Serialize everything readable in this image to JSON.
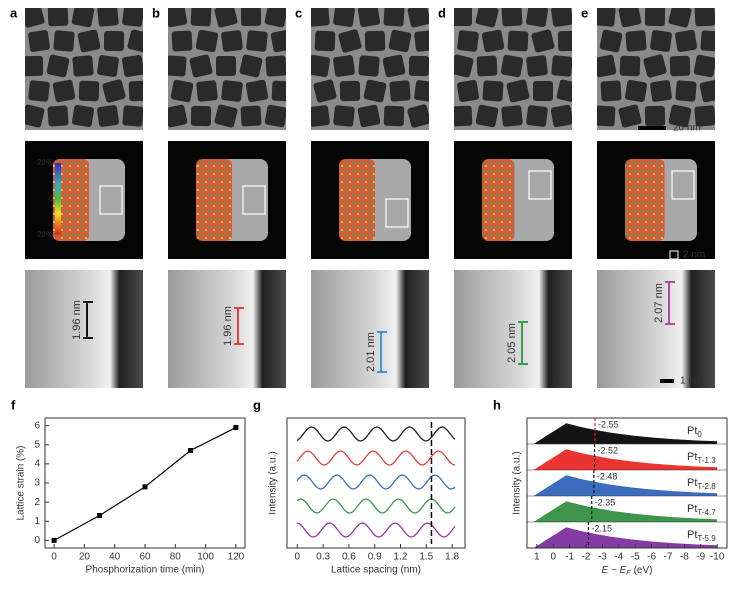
{
  "figure": {
    "panel_labels": [
      "a",
      "b",
      "c",
      "d",
      "e",
      "f",
      "g",
      "h"
    ],
    "scale_bars": {
      "overview": "20 nm",
      "particle": "2 nm",
      "lattice": "1 nm"
    },
    "strain_colorbar": [
      "-20%",
      "0",
      "20%"
    ],
    "lattice_spacings": [
      "1.96 nm",
      "1.96 nm",
      "2.01 nm",
      "2.05 nm",
      "2.07 nm"
    ]
  },
  "chart_data": [
    {
      "type": "line",
      "xlabel": "Phosphorization time (min)",
      "ylabel": "Lattice strain (%)",
      "x": [
        0,
        30,
        60,
        90,
        120
      ],
      "values": [
        0,
        1.3,
        2.8,
        4.7,
        5.9
      ],
      "color": "#000000",
      "xlim": [
        -6,
        126
      ],
      "ylim": [
        -0.4,
        6.4
      ],
      "xticks": [
        0,
        20,
        40,
        60,
        80,
        100,
        120
      ],
      "yticks": [
        0,
        1,
        2,
        3,
        4,
        5,
        6
      ]
    },
    {
      "type": "profile",
      "xlabel": "Lattice spacing (nm)",
      "ylabel": "Intensity (a.u.)",
      "xlim": [
        -0.12,
        1.95
      ],
      "xticks": [
        0,
        0.3,
        0.6,
        0.9,
        1.2,
        1.5,
        1.8
      ],
      "marker_line": 1.56,
      "colors": [
        "#222222",
        "#e0413a",
        "#3a6fc0",
        "#3d9a4a",
        "#8e3aa8"
      ]
    },
    {
      "type": "dos",
      "xlabel": "E − E",
      "xlabel_sub": "F",
      "xlabel_unit": "(eV)",
      "ylabel": "Intensity (a.u.)",
      "xlim": [
        1.6,
        -10.6
      ],
      "xticks": [
        1,
        0,
        -1,
        -2,
        -3,
        -4,
        -5,
        -6,
        -7,
        -8,
        -9,
        -10
      ],
      "values": [
        -2.55,
        -2.52,
        -2.48,
        -2.35,
        -2.15
      ],
      "series": [
        {
          "name": "Pt",
          "sub": "0",
          "color": "#000000"
        },
        {
          "name": "Pt",
          "sub": "T-1.3",
          "color": "#e8231f"
        },
        {
          "name": "Pt",
          "sub": "T-2.8",
          "color": "#2b5fb8"
        },
        {
          "name": "Pt",
          "sub": "T-4.7",
          "color": "#2e8b3e"
        },
        {
          "name": "Pt",
          "sub": "T-5.9",
          "color": "#7b2a9c"
        }
      ]
    }
  ]
}
